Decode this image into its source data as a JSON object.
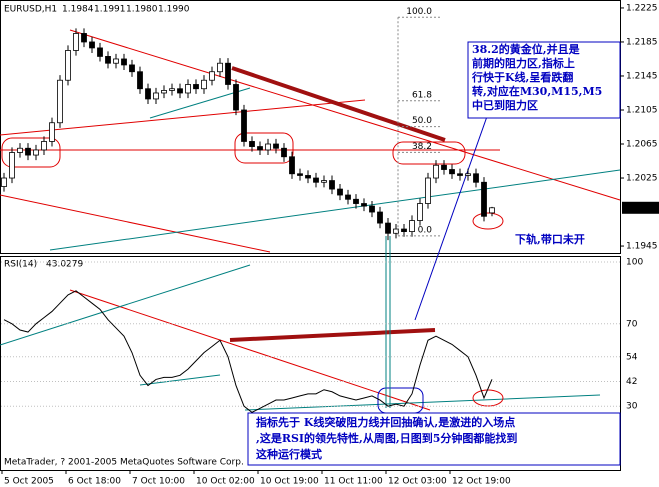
{
  "chart_data": [
    {
      "type": "candlestick",
      "title": "EURUSD,H1",
      "header_ohlc": [
        "1.1984",
        "1.1991",
        "1.1980",
        "1.1990"
      ],
      "current_price": {
        "value": 1.199,
        "label": "1.1990"
      },
      "ohlc": [
        [
          1.2015,
          1.2031,
          1.2009,
          1.2025
        ],
        [
          1.2025,
          1.2061,
          1.2019,
          1.2055
        ],
        [
          1.2055,
          1.2066,
          1.2049,
          1.206
        ],
        [
          1.206,
          1.2066,
          1.2046,
          1.2052
        ],
        [
          1.2052,
          1.2064,
          1.2046,
          1.2058
        ],
        [
          1.2058,
          1.2074,
          1.2052,
          1.2068
        ],
        [
          1.2068,
          1.2096,
          1.2062,
          1.209
        ],
        [
          1.209,
          1.2146,
          1.2084,
          1.214
        ],
        [
          1.214,
          1.2181,
          1.2134,
          1.2175
        ],
        [
          1.2175,
          1.2201,
          1.2169,
          1.2195
        ],
        [
          1.2195,
          1.2201,
          1.2179,
          1.2185
        ],
        [
          1.2185,
          1.2191,
          1.2172,
          1.2178
        ],
        [
          1.2178,
          1.2184,
          1.2162,
          1.2168
        ],
        [
          1.2168,
          1.2174,
          1.2154,
          1.216
        ],
        [
          1.216,
          1.2171,
          1.2154,
          1.2165
        ],
        [
          1.2165,
          1.2171,
          1.2152,
          1.2158
        ],
        [
          1.2158,
          1.2164,
          1.2144,
          1.215
        ],
        [
          1.215,
          1.2156,
          1.2124,
          1.213
        ],
        [
          1.213,
          1.2136,
          1.2112,
          1.2118
        ],
        [
          1.2118,
          1.2131,
          1.2112,
          1.2125
        ],
        [
          1.2125,
          1.2134,
          1.2119,
          1.2128
        ],
        [
          1.2128,
          1.2136,
          1.2122,
          1.213
        ],
        [
          1.213,
          1.2136,
          1.2119,
          1.2125
        ],
        [
          1.2125,
          1.2141,
          1.2119,
          1.2135
        ],
        [
          1.2135,
          1.2141,
          1.2124,
          1.213
        ],
        [
          1.213,
          1.2146,
          1.2124,
          1.214
        ],
        [
          1.214,
          1.2156,
          1.2134,
          1.215
        ],
        [
          1.215,
          1.2166,
          1.2144,
          1.216
        ],
        [
          1.216,
          1.2166,
          1.2129,
          1.2135
        ],
        [
          1.2135,
          1.2141,
          1.2099,
          1.2105
        ],
        [
          1.2105,
          1.2111,
          1.2062,
          1.2068
        ],
        [
          1.2068,
          1.2074,
          1.2056,
          1.2062
        ],
        [
          1.2062,
          1.2068,
          1.2052,
          1.2058
        ],
        [
          1.2058,
          1.2071,
          1.2052,
          1.2065
        ],
        [
          1.2065,
          1.2071,
          1.2054,
          1.206
        ],
        [
          1.206,
          1.2066,
          1.2044,
          1.205
        ],
        [
          1.205,
          1.2056,
          1.2024,
          1.203
        ],
        [
          1.203,
          1.2036,
          1.2022,
          1.2028
        ],
        [
          1.2028,
          1.2034,
          1.2019,
          1.2025
        ],
        [
          1.2025,
          1.2031,
          1.2014,
          1.202
        ],
        [
          1.202,
          1.2028,
          1.2014,
          1.2022
        ],
        [
          1.2022,
          1.2028,
          1.2006,
          1.2012
        ],
        [
          1.2012,
          1.2018,
          1.1999,
          1.2005
        ],
        [
          1.2005,
          1.2011,
          1.1994,
          1.2
        ],
        [
          1.2,
          1.2006,
          1.1989,
          1.1995
        ],
        [
          1.1995,
          1.2001,
          1.1986,
          1.1992
        ],
        [
          1.1992,
          1.1998,
          1.1979,
          1.1985
        ],
        [
          1.1985,
          1.1991,
          1.1966,
          1.1972
        ],
        [
          1.1972,
          1.1978,
          1.1952,
          1.196
        ],
        [
          1.196,
          1.1971,
          1.1954,
          1.1965
        ],
        [
          1.1965,
          1.1971,
          1.1956,
          1.1962
        ],
        [
          1.1962,
          1.1981,
          1.1956,
          1.1975
        ],
        [
          1.1975,
          1.2001,
          1.1969,
          1.1995
        ],
        [
          1.1995,
          1.2031,
          1.1989,
          1.2025
        ],
        [
          1.2025,
          1.2046,
          1.2019,
          1.204
        ],
        [
          1.204,
          1.2046,
          1.2029,
          1.2035
        ],
        [
          1.2035,
          1.2041,
          1.2024,
          1.203
        ],
        [
          1.203,
          1.2036,
          1.2022,
          1.2028
        ],
        [
          1.2028,
          1.2036,
          1.2022,
          1.203
        ],
        [
          1.203,
          1.2036,
          1.2014,
          1.202
        ],
        [
          1.202,
          1.2026,
          1.1974,
          1.198
        ],
        [
          1.1984,
          1.1991,
          1.198,
          1.199
        ]
      ],
      "ylim": [
        1.1938,
        1.2232
      ],
      "yticks": [
        1.2225,
        1.2185,
        1.2145,
        1.2105,
        1.2065,
        1.2025,
        1.1945
      ],
      "fib_low": 1.1957,
      "fib_high": 1.2214,
      "fib_levels": [
        {
          "value": 100,
          "label": "100.0"
        },
        {
          "value": 61.8,
          "label": "61.8"
        },
        {
          "value": 50,
          "label": "50.0"
        },
        {
          "value": 38.2,
          "label": "38.2"
        },
        {
          "value": 0,
          "label": "0.0"
        }
      ]
    },
    {
      "type": "line",
      "title": "RSI(14)",
      "color": "#000000",
      "values": [
        72,
        70,
        67,
        66,
        70,
        73,
        76,
        80,
        84,
        86,
        83,
        80,
        77,
        72,
        68,
        64,
        56,
        45,
        40,
        43,
        44,
        44,
        45,
        48,
        52,
        56,
        59,
        62,
        54,
        40,
        30,
        27,
        29,
        31,
        33,
        33,
        34,
        35,
        36,
        36,
        38,
        37,
        35,
        34,
        33,
        34,
        35,
        33,
        30,
        31,
        30,
        36,
        50,
        62,
        64,
        62,
        60,
        57,
        54,
        45,
        34,
        43.0279
      ],
      "ylim": [
        0,
        100
      ],
      "yticks": [
        100,
        70,
        54,
        42,
        30
      ]
    }
  ],
  "x_labels": [
    "5 Oct 2005",
    "6 Oct 18:00",
    "7 Oct 10:00",
    "10 Oct 02:00",
    "10 Oct 19:00",
    "11 Oct 11:00",
    "12 Oct 03:00",
    "12 Oct 19:00"
  ],
  "annotations": [
    {
      "lines": [
        "38.2的黄金位,并且是",
        "前期的阻力区,指标上",
        "行快于K线,呈看跌翻",
        "转,对应在M30,M15,M5",
        "中已到阻力区"
      ]
    },
    {
      "text": "下轨,带口未开"
    },
    {
      "lines": [
        "指标先于 K线突破阻力线并回抽确认,是激进的入场点",
        ",这是RSI的领先特性,从周图,日图到5分钟图都能找到",
        "这种运行模式"
      ]
    }
  ],
  "footer": "MetaTrader, ? 2001-2005 MetaQuotes Software Corp."
}
